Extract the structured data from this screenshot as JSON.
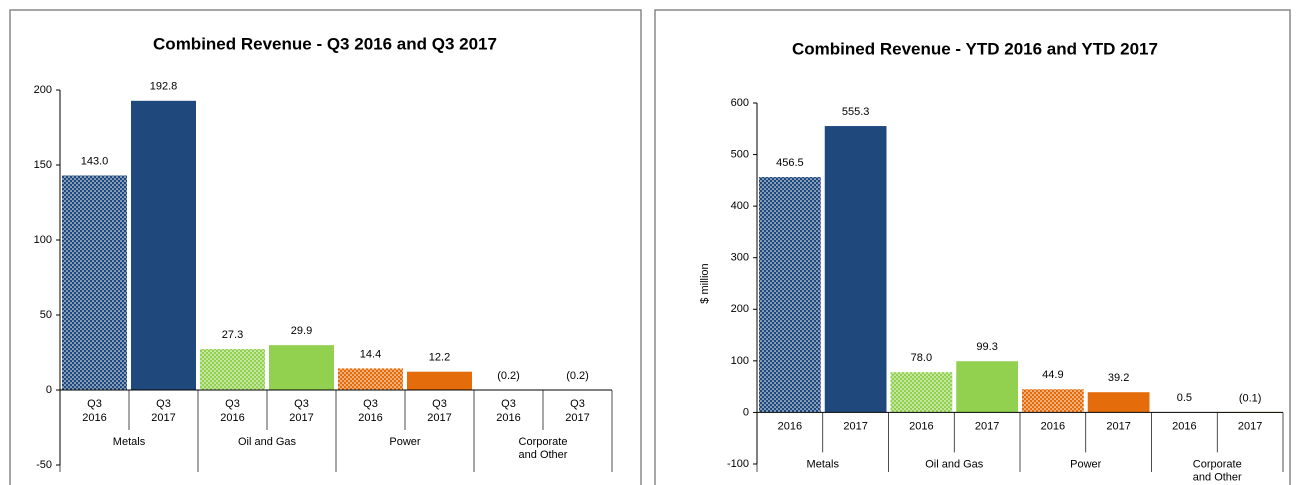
{
  "chart_data": [
    {
      "type": "bar",
      "title": "Combined Revenue - Q3 2016 and Q3 2017",
      "categories": [
        [
          "Q3",
          "2016"
        ],
        [
          "Q3",
          "2017"
        ],
        [
          "Q3",
          "2016"
        ],
        [
          "Q3",
          "2017"
        ],
        [
          "Q3",
          "2016"
        ],
        [
          "Q3",
          "2017"
        ],
        [
          "Q3",
          "2016"
        ],
        [
          "Q3",
          "2017"
        ]
      ],
      "groups": [
        [
          "Metals"
        ],
        [
          "Oil and Gas"
        ],
        [
          "Power"
        ],
        [
          "Corporate",
          "and Other"
        ]
      ],
      "values": [
        143.0,
        192.8,
        27.3,
        29.9,
        14.4,
        12.2,
        -0.2,
        -0.2
      ],
      "value_labels": [
        "143.0",
        "192.8",
        "27.3",
        "29.9",
        "14.4",
        "12.2",
        "(0.2)",
        "(0.2)"
      ],
      "colors": [
        "#1f497d",
        "#1f497d",
        "#92d050",
        "#92d050",
        "#e46c0a",
        "#e46c0a",
        "#7f7f7f",
        "#7f7f7f"
      ],
      "patterned": [
        true,
        false,
        true,
        false,
        true,
        false,
        true,
        false
      ],
      "ylim": [
        -50,
        200
      ],
      "yticks": [
        -50,
        0,
        50,
        100,
        150,
        200
      ]
    },
    {
      "type": "bar",
      "title": "Combined Revenue - YTD 2016 and YTD 2017",
      "ylabel": "$ million",
      "categories": [
        [
          "2016"
        ],
        [
          "2017"
        ],
        [
          "2016"
        ],
        [
          "2017"
        ],
        [
          "2016"
        ],
        [
          "2017"
        ],
        [
          "2016"
        ],
        [
          "2017"
        ]
      ],
      "groups": [
        [
          "Metals"
        ],
        [
          "Oil and Gas"
        ],
        [
          "Power"
        ],
        [
          "Corporate",
          "and Other"
        ]
      ],
      "values": [
        456.5,
        555.3,
        78.0,
        99.3,
        44.9,
        39.2,
        0.5,
        -0.1
      ],
      "value_labels": [
        "456.5",
        "555.3",
        "78.0",
        "99.3",
        "44.9",
        "39.2",
        "0.5",
        "(0.1)"
      ],
      "colors": [
        "#1f497d",
        "#1f497d",
        "#92d050",
        "#92d050",
        "#e46c0a",
        "#e46c0a",
        "#7f7f7f",
        "#e6b800"
      ],
      "patterned": [
        true,
        false,
        true,
        false,
        true,
        false,
        true,
        false
      ],
      "ylim": [
        -100,
        600
      ],
      "yticks": [
        -100,
        0,
        100,
        200,
        300,
        400,
        500,
        600
      ]
    }
  ]
}
